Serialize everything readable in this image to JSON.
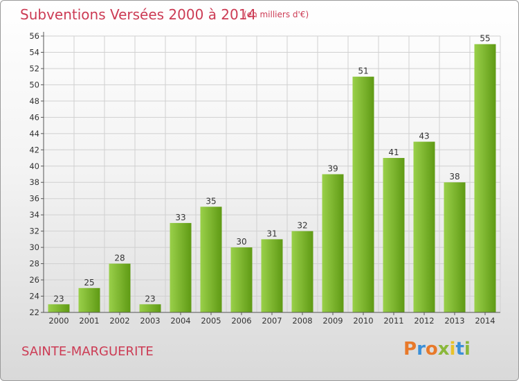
{
  "title": "Subventions Versées 2000 à 2014",
  "subtitle": "(en milliers d'€)",
  "commune": "SAINTE-MARGUERITE",
  "logo": {
    "text": "Proxiti",
    "colors": [
      "#e8792a",
      "#3a8fd8",
      "#e8792a",
      "#8ab83a",
      "#e8c22a",
      "#3a8fd8",
      "#8ab83a"
    ]
  },
  "colors": {
    "title": "#cc3b54",
    "bar_light": "#9ad04a",
    "bar_dark": "#5f9a14",
    "grid": "#d0d0d0"
  },
  "chart_data": {
    "type": "bar",
    "categories": [
      "2000",
      "2001",
      "2002",
      "2003",
      "2004",
      "2005",
      "2006",
      "2007",
      "2008",
      "2009",
      "2010",
      "2011",
      "2012",
      "2013",
      "2014"
    ],
    "values": [
      23,
      25,
      28,
      23,
      33,
      35,
      30,
      31,
      32,
      39,
      51,
      41,
      43,
      38,
      55
    ],
    "ylim": [
      22,
      56
    ],
    "yticks": [
      22,
      24,
      26,
      28,
      30,
      32,
      34,
      36,
      38,
      40,
      42,
      44,
      46,
      48,
      50,
      52,
      54,
      56
    ],
    "grid": true,
    "legend": "none"
  }
}
